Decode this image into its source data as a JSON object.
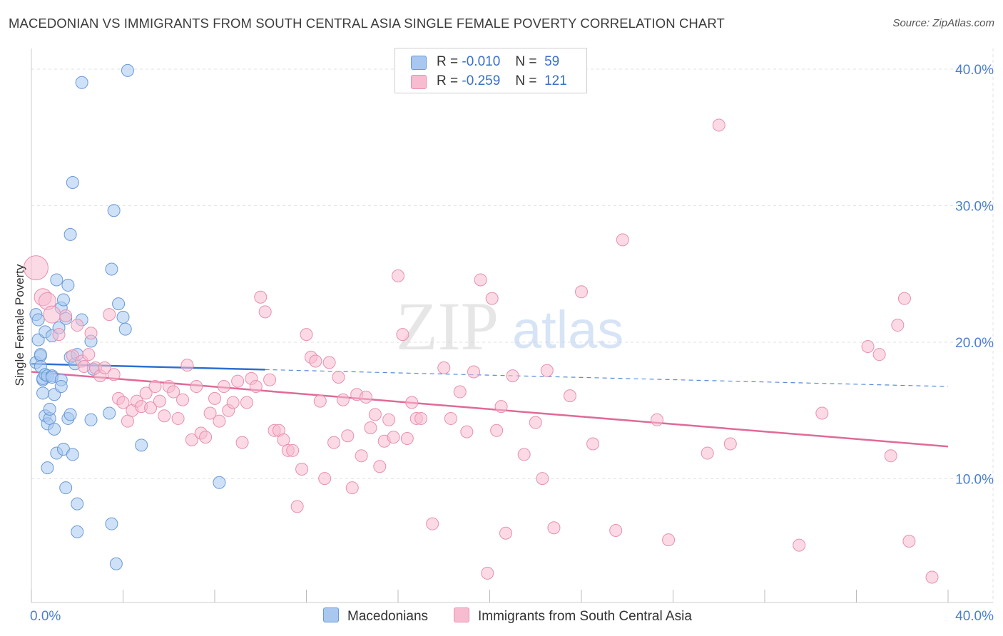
{
  "title": "MACEDONIAN VS IMMIGRANTS FROM SOUTH CENTRAL ASIA SINGLE FEMALE POVERTY CORRELATION CHART",
  "source": "Source: ZipAtlas.com",
  "watermark": {
    "zip": "ZIP",
    "atlas": "atlas"
  },
  "legend": {
    "r_label": "R =",
    "n_label": "N =",
    "rows": [
      {
        "r": "-0.010",
        "n": "59",
        "color": "#a8c8f0",
        "border": "#6a9ad8"
      },
      {
        "r": "-0.259",
        "n": "121",
        "color": "#f8bcd0",
        "border": "#e890b0"
      }
    ]
  },
  "chart_data": {
    "type": "scatter",
    "title": "MACEDONIAN VS IMMIGRANTS FROM SOUTH CENTRAL ASIA SINGLE FEMALE POVERTY CORRELATION CHART",
    "xlabel": "",
    "ylabel": "Single Female Poverty",
    "xlim": [
      0,
      40
    ],
    "ylim": [
      0,
      40
    ],
    "x_tick_labels": [
      "0.0%",
      "40.0%"
    ],
    "y_ticks": [
      10,
      20,
      30,
      40
    ],
    "y_tick_labels": [
      "10.0%",
      "20.0%",
      "30.0%",
      "40.0%"
    ],
    "grid": true,
    "series": [
      {
        "name": "Macedonians",
        "color": "#a8c8f0",
        "stroke": "#6a9ad8",
        "trend": {
          "x0": 0,
          "y0": 17.9,
          "x1": 40,
          "y1": 16.2,
          "solid_until": 10.2,
          "color": "#2f6fd0"
        },
        "points": [
          [
            0.2,
            21.6
          ],
          [
            0.2,
            18.0
          ],
          [
            0.3,
            19.7
          ],
          [
            0.3,
            21.2
          ],
          [
            0.4,
            18.5
          ],
          [
            0.4,
            18.6
          ],
          [
            0.4,
            17.7
          ],
          [
            0.5,
            15.7
          ],
          [
            0.5,
            16.7
          ],
          [
            0.5,
            16.8
          ],
          [
            0.6,
            14.0
          ],
          [
            0.6,
            17.1
          ],
          [
            0.6,
            20.3
          ],
          [
            0.7,
            13.4
          ],
          [
            0.7,
            17.0
          ],
          [
            0.7,
            10.1
          ],
          [
            0.8,
            13.8
          ],
          [
            0.8,
            14.5
          ],
          [
            0.9,
            20.0
          ],
          [
            0.9,
            17.0
          ],
          [
            0.9,
            16.9
          ],
          [
            1.0,
            13.0
          ],
          [
            1.0,
            15.6
          ],
          [
            1.1,
            11.2
          ],
          [
            1.1,
            24.2
          ],
          [
            1.2,
            20.6
          ],
          [
            1.3,
            16.7
          ],
          [
            1.3,
            16.2
          ],
          [
            1.3,
            22.1
          ],
          [
            1.4,
            11.5
          ],
          [
            1.4,
            22.7
          ],
          [
            1.5,
            8.6
          ],
          [
            1.5,
            21.3
          ],
          [
            1.6,
            13.8
          ],
          [
            1.6,
            23.8
          ],
          [
            1.7,
            14.1
          ],
          [
            1.7,
            18.4
          ],
          [
            1.7,
            27.6
          ],
          [
            1.8,
            11.1
          ],
          [
            1.9,
            17.9
          ],
          [
            1.8,
            31.5
          ],
          [
            2.0,
            7.4
          ],
          [
            2.0,
            5.3
          ],
          [
            2.0,
            18.6
          ],
          [
            2.2,
            21.2
          ],
          [
            2.2,
            39.0
          ],
          [
            2.6,
            19.6
          ],
          [
            2.6,
            13.7
          ],
          [
            2.7,
            17.5
          ],
          [
            3.4,
            14.2
          ],
          [
            3.5,
            25.0
          ],
          [
            3.5,
            5.9
          ],
          [
            3.6,
            29.4
          ],
          [
            3.7,
            2.9
          ],
          [
            3.8,
            22.4
          ],
          [
            4.0,
            21.4
          ],
          [
            4.1,
            20.5
          ],
          [
            4.2,
            39.9
          ],
          [
            4.8,
            11.8
          ],
          [
            8.2,
            9.0
          ]
        ]
      },
      {
        "name": "Immigrants from South Central Asia",
        "color": "#f8bcd0",
        "stroke": "#e890b0",
        "trend": {
          "x0": 0,
          "y0": 17.3,
          "x1": 40,
          "y1": 11.7,
          "solid_until": 40,
          "color": "#e06a98"
        },
        "points": [
          [
            0.2,
            25.1
          ],
          [
            0.5,
            22.9
          ],
          [
            0.7,
            22.6
          ],
          [
            0.9,
            21.6
          ],
          [
            1.2,
            20.1
          ],
          [
            1.5,
            21.5
          ],
          [
            1.8,
            18.5
          ],
          [
            2.0,
            20.8
          ],
          [
            2.2,
            18.1
          ],
          [
            2.3,
            17.7
          ],
          [
            2.5,
            18.6
          ],
          [
            2.6,
            20.2
          ],
          [
            2.8,
            17.6
          ],
          [
            3.0,
            17.0
          ],
          [
            3.2,
            17.6
          ],
          [
            3.4,
            21.6
          ],
          [
            3.6,
            17.1
          ],
          [
            3.8,
            15.3
          ],
          [
            4.0,
            15.0
          ],
          [
            4.2,
            13.6
          ],
          [
            4.4,
            14.4
          ],
          [
            4.6,
            15.1
          ],
          [
            4.8,
            14.7
          ],
          [
            5.0,
            15.7
          ],
          [
            5.2,
            14.6
          ],
          [
            5.4,
            16.2
          ],
          [
            5.6,
            15.1
          ],
          [
            5.8,
            14.0
          ],
          [
            6.0,
            16.2
          ],
          [
            6.2,
            15.8
          ],
          [
            6.4,
            13.8
          ],
          [
            6.6,
            15.2
          ],
          [
            6.8,
            17.8
          ],
          [
            7.0,
            12.2
          ],
          [
            7.2,
            16.2
          ],
          [
            7.4,
            12.7
          ],
          [
            7.6,
            12.4
          ],
          [
            7.8,
            14.2
          ],
          [
            8.0,
            15.3
          ],
          [
            8.2,
            13.6
          ],
          [
            8.4,
            16.2
          ],
          [
            8.6,
            14.4
          ],
          [
            8.8,
            15.0
          ],
          [
            9.0,
            16.6
          ],
          [
            9.2,
            12.0
          ],
          [
            9.4,
            15.0
          ],
          [
            9.6,
            16.8
          ],
          [
            9.8,
            16.2
          ],
          [
            10.0,
            22.9
          ],
          [
            10.2,
            21.8
          ],
          [
            10.4,
            16.7
          ],
          [
            10.6,
            12.9
          ],
          [
            10.8,
            12.9
          ],
          [
            11.0,
            12.2
          ],
          [
            11.2,
            11.4
          ],
          [
            11.4,
            11.4
          ],
          [
            11.6,
            7.2
          ],
          [
            11.8,
            10.0
          ],
          [
            12.0,
            20.1
          ],
          [
            12.2,
            18.4
          ],
          [
            12.4,
            18.1
          ],
          [
            12.6,
            15.1
          ],
          [
            12.8,
            9.3
          ],
          [
            13.0,
            18.0
          ],
          [
            13.2,
            12.0
          ],
          [
            13.4,
            16.9
          ],
          [
            13.6,
            15.2
          ],
          [
            13.8,
            12.5
          ],
          [
            14.0,
            8.6
          ],
          [
            14.2,
            15.6
          ],
          [
            14.4,
            11.0
          ],
          [
            14.6,
            15.4
          ],
          [
            14.8,
            13.1
          ],
          [
            15.0,
            14.1
          ],
          [
            15.2,
            10.2
          ],
          [
            15.4,
            12.1
          ],
          [
            15.6,
            13.7
          ],
          [
            15.8,
            12.4
          ],
          [
            16.0,
            24.5
          ],
          [
            16.2,
            20.1
          ],
          [
            16.4,
            12.3
          ],
          [
            16.6,
            15.0
          ],
          [
            16.8,
            13.8
          ],
          [
            17.0,
            13.8
          ],
          [
            17.5,
            5.9
          ],
          [
            18.0,
            17.6
          ],
          [
            18.3,
            13.8
          ],
          [
            18.7,
            15.8
          ],
          [
            19.0,
            12.8
          ],
          [
            19.3,
            17.3
          ],
          [
            19.6,
            24.2
          ],
          [
            19.9,
            2.2
          ],
          [
            20.1,
            22.8
          ],
          [
            20.3,
            12.9
          ],
          [
            20.5,
            14.7
          ],
          [
            20.7,
            5.2
          ],
          [
            21.0,
            17.0
          ],
          [
            21.5,
            11.1
          ],
          [
            22.0,
            13.5
          ],
          [
            22.3,
            9.3
          ],
          [
            22.5,
            17.4
          ],
          [
            22.8,
            5.6
          ],
          [
            23.5,
            15.5
          ],
          [
            24.0,
            23.3
          ],
          [
            24.5,
            11.9
          ],
          [
            25.5,
            5.4
          ],
          [
            25.8,
            27.2
          ],
          [
            27.3,
            13.7
          ],
          [
            27.8,
            4.7
          ],
          [
            29.5,
            11.2
          ],
          [
            30.0,
            35.8
          ],
          [
            30.5,
            11.9
          ],
          [
            33.5,
            4.3
          ],
          [
            34.5,
            14.2
          ],
          [
            36.5,
            19.2
          ],
          [
            37.0,
            18.6
          ],
          [
            37.5,
            11.0
          ],
          [
            37.8,
            20.8
          ],
          [
            38.1,
            22.8
          ],
          [
            38.3,
            4.6
          ],
          [
            39.3,
            1.9
          ]
        ]
      }
    ]
  },
  "bottom_legend": [
    {
      "label": "Macedonians",
      "color": "#a8c8f0",
      "border": "#6a9ad8"
    },
    {
      "label": "Immigrants from South Central Asia",
      "color": "#f8bcd0",
      "border": "#e890b0"
    }
  ]
}
